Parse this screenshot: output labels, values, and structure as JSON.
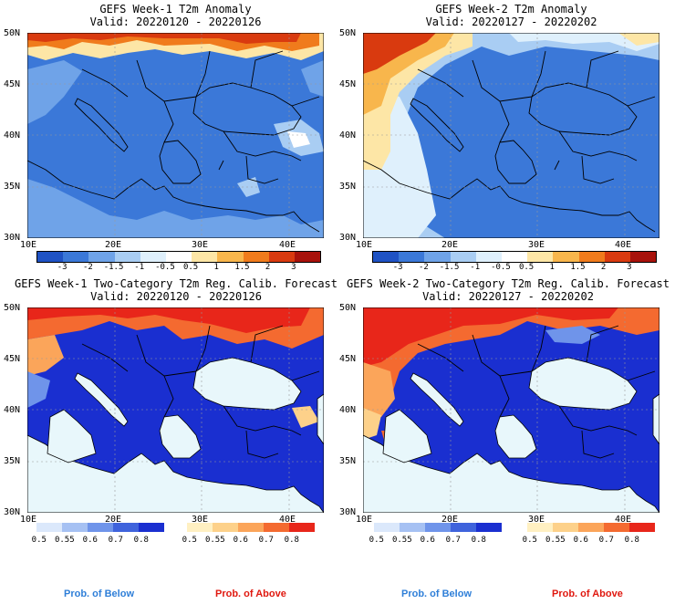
{
  "panels": {
    "w1_anom": {
      "title": "GEFS Week-1 T2m Anomaly",
      "valid": "Valid: 20220120 - 20220126"
    },
    "w2_anom": {
      "title": "GEFS Week-2 T2m Anomaly",
      "valid": "Valid: 20220127 - 20220202"
    },
    "w1_prob": {
      "title": "GEFS Week-1 Two-Category T2m Reg. Calib. Forecast",
      "valid": "Valid: 20220120 - 20220126"
    },
    "w2_prob": {
      "title": "GEFS Week-2 Two-Category T2m Reg. Calib. Forecast",
      "valid": "Valid: 20220127 - 20220202"
    }
  },
  "map_axes": {
    "lat_labels": [
      "50N",
      "45N",
      "40N",
      "35N",
      "30N"
    ],
    "lon_labels": [
      "10E",
      "20E",
      "30E",
      "40E"
    ],
    "lon_range": [
      10,
      44
    ],
    "lat_range": [
      30,
      50
    ]
  },
  "anomaly_colorbar": {
    "ticks": [
      "-3",
      "-2",
      "-1.5",
      "-1",
      "-0.5",
      "0.5",
      "1",
      "1.5",
      "2",
      "3"
    ],
    "colors": [
      "#1f52c4",
      "#3b78d8",
      "#6fa3e8",
      "#a9cdf3",
      "#dff0fc",
      "#ffffff",
      "#fde6a6",
      "#f8b64c",
      "#f07b1c",
      "#d93a0f",
      "#a8120b"
    ]
  },
  "prob_colorbars": {
    "below": {
      "ticks": [
        "0.5",
        "0.55",
        "0.6",
        "0.7",
        "0.8"
      ],
      "colors": [
        "#dbe8fb",
        "#a6c1f3",
        "#6f94ea",
        "#3f63dc",
        "#1a2fd0"
      ]
    },
    "above": {
      "ticks": [
        "0.5",
        "0.55",
        "0.6",
        "0.7",
        "0.8"
      ],
      "colors": [
        "#fff0c2",
        "#fdd18a",
        "#fba55a",
        "#f46a30",
        "#e8261a"
      ]
    },
    "below_label": "Prob. of Below",
    "above_label": "Prob. of Above"
  }
}
